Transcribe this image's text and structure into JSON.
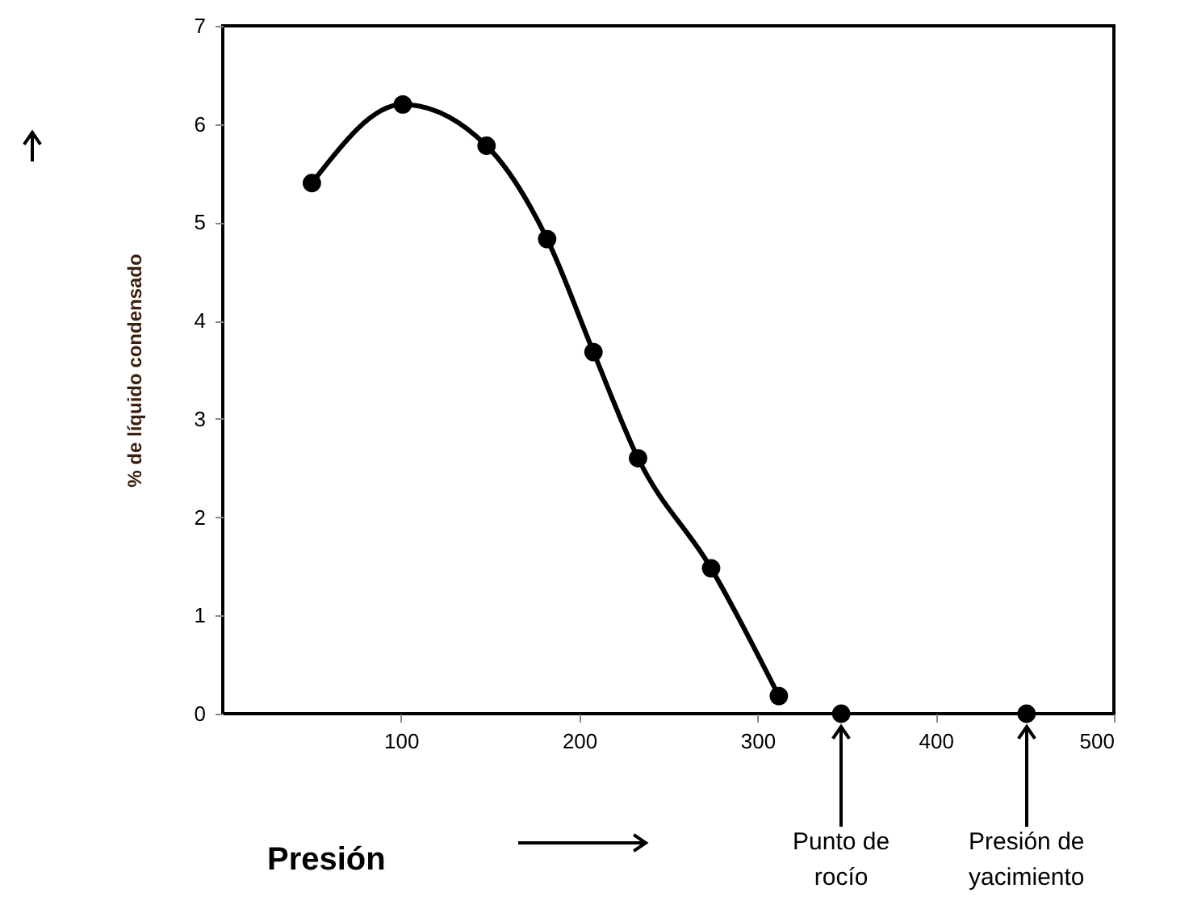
{
  "chart_data": {
    "type": "scatter",
    "xlabel": "Presión",
    "ylabel": "% de líquido condensado",
    "xlim": [
      0,
      500
    ],
    "xticks": [
      100,
      200,
      300,
      400,
      500
    ],
    "ylim": [
      0,
      7
    ],
    "yticks": [
      0,
      1,
      2,
      3,
      4,
      5,
      6,
      7
    ],
    "grid": false,
    "marker": "circle",
    "series": [
      {
        "color": "#000000",
        "x": [
          50,
          101,
          148,
          182,
          208,
          233,
          274,
          312,
          347,
          451
        ],
        "values": [
          5.4,
          6.2,
          5.78,
          4.83,
          3.68,
          2.6,
          1.48,
          0.18,
          0,
          0
        ]
      },
      {
        "type": "line",
        "marker": "none",
        "color": "#000000",
        "line_style": "solid",
        "x": [
          50,
          101,
          148,
          182,
          208,
          233,
          274,
          312
        ],
        "values": [
          5.4,
          6.2,
          5.78,
          4.83,
          3.68,
          2.6,
          1.48,
          0.18
        ]
      }
    ],
    "annotations": [
      {
        "text": "Punto de\nrocío",
        "x": 347,
        "y": 0
      },
      {
        "text": "Presión de\nyacimiento",
        "x": 451,
        "y": 0
      }
    ]
  }
}
